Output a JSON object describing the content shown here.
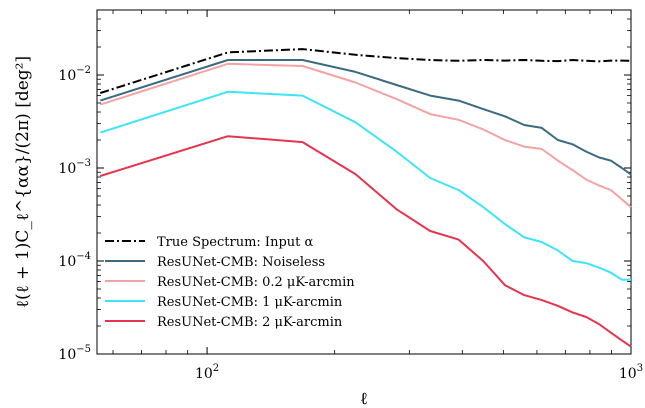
{
  "chart_data": {
    "type": "line",
    "title": "",
    "xlabel": "ℓ",
    "ylabel": "ℓ(ℓ + 1)C_ℓ^{αα}/(2π) [deg²]",
    "xscale": "log",
    "yscale": "log",
    "xlim": [
      55,
      1000
    ],
    "ylim": [
      1e-05,
      0.05
    ],
    "x_ticks": [
      {
        "value": 100,
        "base": "10",
        "exp": "2"
      },
      {
        "value": 1000,
        "base": "10",
        "exp": "3"
      }
    ],
    "y_ticks": [
      {
        "value": 1e-05,
        "base": "10",
        "exp": "−5"
      },
      {
        "value": 0.0001,
        "base": "10",
        "exp": "−4"
      },
      {
        "value": 0.001,
        "base": "10",
        "exp": "−3"
      },
      {
        "value": 0.01,
        "base": "10",
        "exp": "−2"
      }
    ],
    "grid": false,
    "legend_position": "lower-left",
    "series": [
      {
        "name": "True Spectrum: Input α",
        "color": "#000000",
        "dash": "dashdot",
        "x": [
          56,
          112,
          168,
          224,
          280,
          336,
          392,
          448,
          504,
          560,
          616,
          672,
          728,
          784,
          840,
          896,
          952,
          1000
        ],
        "y": [
          0.0064,
          0.0175,
          0.019,
          0.0165,
          0.0152,
          0.0145,
          0.0142,
          0.0145,
          0.0143,
          0.0145,
          0.0142,
          0.0141,
          0.0145,
          0.0142,
          0.014,
          0.0143,
          0.0143,
          0.0142
        ]
      },
      {
        "name": "ResUNet-CMB: Noiseless",
        "color": "#3a6b80",
        "dash": "solid",
        "x": [
          56,
          112,
          168,
          224,
          280,
          336,
          392,
          448,
          504,
          560,
          616,
          672,
          728,
          784,
          840,
          896,
          952,
          1000
        ],
        "y": [
          0.0053,
          0.0145,
          0.0145,
          0.0108,
          0.0078,
          0.006,
          0.0053,
          0.0043,
          0.0036,
          0.0029,
          0.0027,
          0.002,
          0.0018,
          0.0015,
          0.0013,
          0.0012,
          0.001,
          0.00085
        ]
      },
      {
        "name": "ResUNet-CMB: 0.2 μK-arcmin",
        "color": "#f4a3a3",
        "dash": "solid",
        "x": [
          56,
          112,
          168,
          224,
          280,
          336,
          392,
          448,
          504,
          560,
          616,
          672,
          728,
          784,
          840,
          896,
          952,
          1000
        ],
        "y": [
          0.0048,
          0.0132,
          0.0125,
          0.0083,
          0.0055,
          0.0038,
          0.0033,
          0.0026,
          0.002,
          0.0017,
          0.0016,
          0.0012,
          0.00095,
          0.00075,
          0.00065,
          0.00058,
          0.00046,
          0.00038
        ]
      },
      {
        "name": "ResUNet-CMB: 1 μK-arcmin",
        "color": "#3de4f8",
        "dash": "solid",
        "x": [
          56,
          112,
          168,
          224,
          280,
          336,
          392,
          448,
          504,
          560,
          616,
          672,
          728,
          784,
          840,
          896,
          952,
          1000
        ],
        "y": [
          0.0024,
          0.0066,
          0.006,
          0.0031,
          0.0015,
          0.00078,
          0.00058,
          0.00038,
          0.00025,
          0.00018,
          0.00016,
          0.00013,
          0.0001,
          9.5e-05,
          8.5e-05,
          7.5e-05,
          6.3e-05,
          6.3e-05
        ]
      },
      {
        "name": "ResUNet-CMB: 2 μK-arcmin",
        "color": "#e6344e",
        "dash": "solid",
        "x": [
          56,
          112,
          168,
          224,
          280,
          336,
          392,
          448,
          504,
          560,
          616,
          672,
          728,
          784,
          840,
          896,
          952,
          1000
        ],
        "y": [
          0.00082,
          0.0022,
          0.0019,
          0.00086,
          0.00036,
          0.00021,
          0.00017,
          0.0001,
          5.5e-05,
          4.3e-05,
          3.8e-05,
          3.3e-05,
          2.8e-05,
          2.5e-05,
          2.1e-05,
          1.7e-05,
          1.4e-05,
          1.2e-05
        ]
      }
    ]
  }
}
